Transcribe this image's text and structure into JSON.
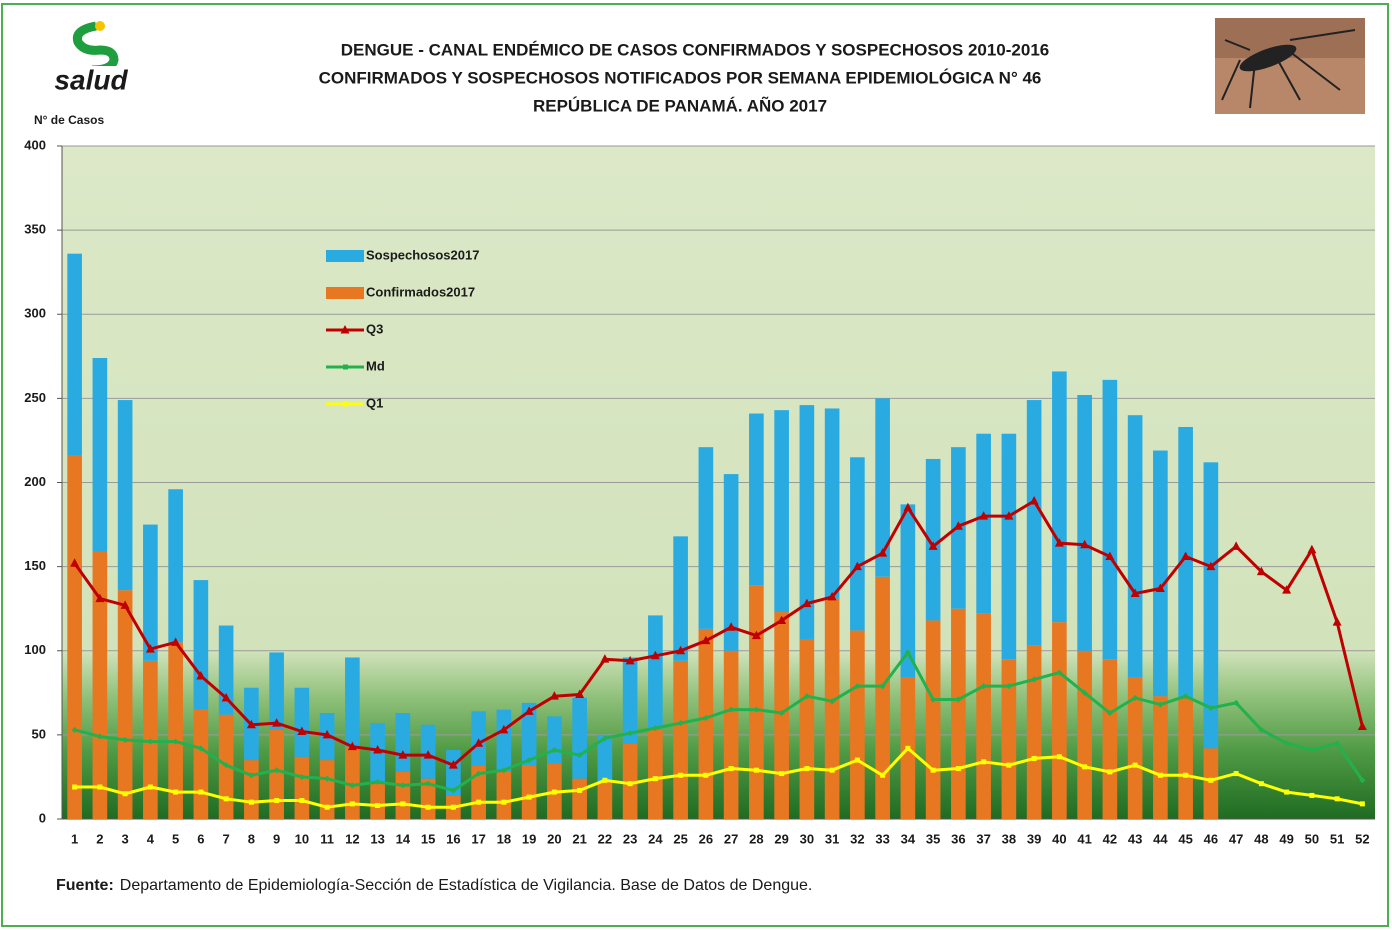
{
  "chart_data": {
    "type": "bar",
    "stacked": true,
    "title": [
      "DENGUE - CANAL ENDÉMICO DE CASOS CONFIRMADOS Y SOSPECHOSOS 2010-2016",
      "CONFIRMADOS Y SOSPECHOSOS NOTIFICADOS POR SEMANA EPIDEMIOLÓGICA N° 46",
      "REPÚBLICA DE PANAMÁ. AÑO 2017"
    ],
    "logo_text": "salud",
    "y_label": "N° de Casos",
    "source": {
      "label": "Fuente:",
      "text": "Departamento de Epidemiología-Sección de Estadística de Vigilancia. Base de Datos de Dengue."
    },
    "categories": [
      "1",
      "2",
      "3",
      "4",
      "5",
      "6",
      "7",
      "8",
      "9",
      "10",
      "11",
      "12",
      "13",
      "14",
      "15",
      "16",
      "17",
      "18",
      "19",
      "20",
      "21",
      "22",
      "23",
      "24",
      "25",
      "26",
      "27",
      "28",
      "29",
      "30",
      "31",
      "32",
      "33",
      "34",
      "35",
      "36",
      "37",
      "38",
      "39",
      "40",
      "41",
      "42",
      "43",
      "44",
      "45",
      "46",
      "47",
      "48",
      "49",
      "50",
      "51",
      "52"
    ],
    "ylim": [
      0,
      400
    ],
    "yticks": [
      0,
      50,
      100,
      150,
      200,
      250,
      300,
      350,
      400
    ],
    "grid": true,
    "legend": "upper-left",
    "series": [
      {
        "name": "Sospechosos2017",
        "type": "bar",
        "color": "#29abe2",
        "values": [
          120,
          115,
          113,
          81,
          91,
          77,
          53,
          43,
          46,
          41,
          28,
          53,
          35,
          35,
          32,
          27,
          32,
          37,
          37,
          28,
          48,
          28,
          51,
          68,
          74,
          108,
          105,
          102,
          120,
          139,
          113,
          103,
          106,
          103,
          96,
          96,
          107,
          134,
          146,
          149,
          152,
          166,
          156,
          146,
          161,
          170,
          null,
          null,
          null,
          null,
          null,
          null
        ]
      },
      {
        "name": "Confirmados2017",
        "type": "bar",
        "color": "#e87722",
        "values": [
          216,
          159,
          136,
          94,
          105,
          65,
          62,
          35,
          53,
          37,
          35,
          43,
          22,
          28,
          24,
          14,
          32,
          28,
          32,
          33,
          24,
          22,
          45,
          53,
          94,
          113,
          100,
          139,
          123,
          107,
          131,
          112,
          144,
          84,
          118,
          125,
          122,
          95,
          103,
          117,
          100,
          95,
          84,
          73,
          72,
          42,
          null,
          null,
          null,
          null,
          null,
          null
        ]
      },
      {
        "name": "Q3",
        "type": "line",
        "color": "#c00000",
        "marker": "triangle",
        "values": [
          152,
          131,
          127,
          101,
          105,
          85,
          72,
          56,
          57,
          52,
          50,
          43,
          41,
          38,
          38,
          32,
          45,
          53,
          64,
          73,
          74,
          95,
          94,
          97,
          100,
          106,
          114,
          109,
          118,
          128,
          132,
          150,
          158,
          185,
          162,
          174,
          180,
          180,
          189,
          164,
          163,
          156,
          134,
          137,
          156,
          150,
          162,
          147,
          136,
          160,
          117,
          55
        ]
      },
      {
        "name": "Md",
        "type": "line",
        "color": "#22b14c",
        "marker": "diamond",
        "values": [
          53,
          49,
          47,
          46,
          46,
          42,
          32,
          26,
          29,
          25,
          24,
          20,
          22,
          20,
          21,
          17,
          27,
          29,
          35,
          41,
          38,
          48,
          51,
          54,
          57,
          60,
          65,
          65,
          63,
          73,
          70,
          79,
          79,
          99,
          71,
          71,
          79,
          79,
          83,
          87,
          75,
          63,
          72,
          68,
          73,
          66,
          69,
          53,
          45,
          41,
          45,
          23
        ]
      },
      {
        "name": "Q1",
        "type": "line",
        "color": "#ffff00",
        "marker": "square",
        "values": [
          19,
          19,
          15,
          19,
          16,
          16,
          12,
          10,
          11,
          11,
          7,
          9,
          8,
          9,
          7,
          7,
          10,
          10,
          13,
          16,
          17,
          23,
          21,
          24,
          26,
          26,
          30,
          29,
          27,
          30,
          29,
          35,
          26,
          42,
          29,
          30,
          34,
          32,
          36,
          37,
          31,
          28,
          32,
          26,
          26,
          23,
          27,
          21,
          16,
          14,
          12,
          9
        ]
      }
    ]
  }
}
